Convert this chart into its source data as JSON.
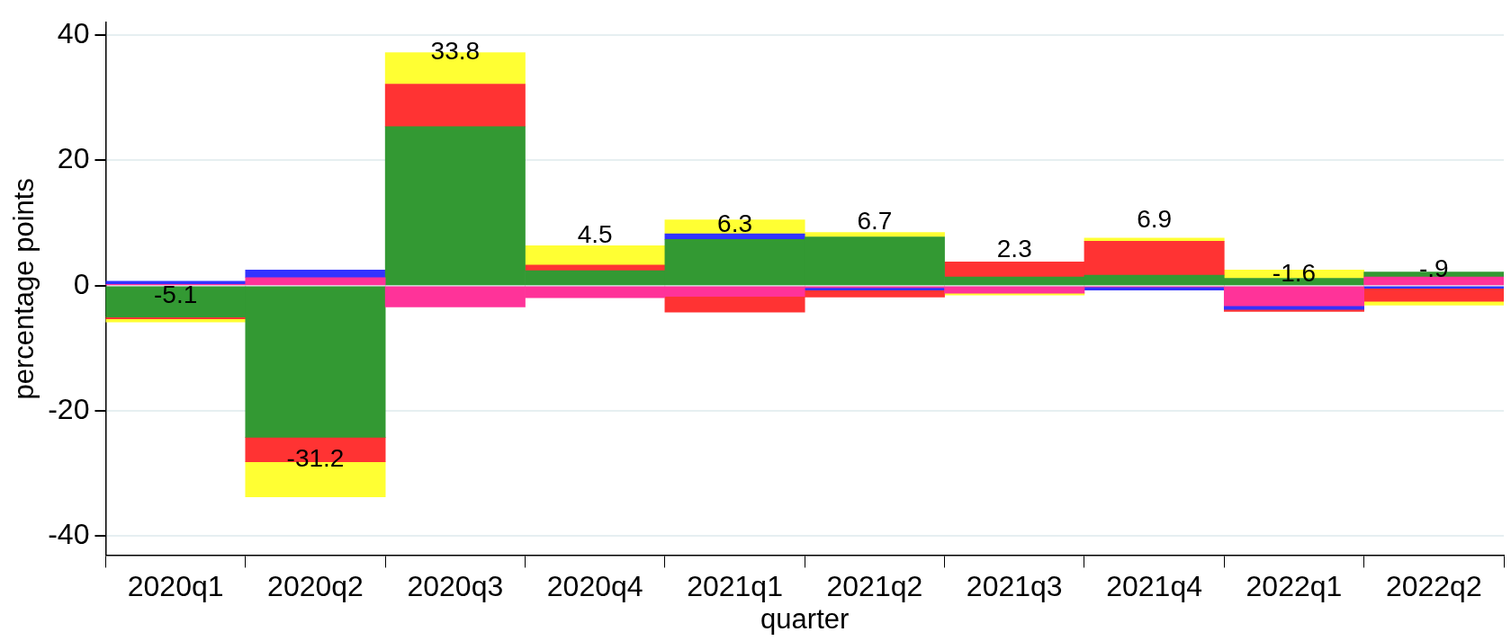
{
  "chart_data": {
    "type": "bar",
    "stacked": true,
    "xlabel": "quarter",
    "ylabel": "percentage points",
    "categories": [
      "2020q1",
      "2020q2",
      "2020q3",
      "2020q4",
      "2021q1",
      "2021q2",
      "2021q3",
      "2021q4",
      "2022q1",
      "2022q2"
    ],
    "series": [
      {
        "color": "#ff3399",
        "values": [
          0.2,
          1.3,
          -3.4,
          -1.9,
          -1.7,
          -0.3,
          -1.2,
          -0.2,
          -3.2,
          1.4
        ]
      },
      {
        "color": "#339933",
        "values": [
          -5.0,
          -24.2,
          25.4,
          2.4,
          7.4,
          7.8,
          1.4,
          1.7,
          1.2,
          0.8
        ]
      },
      {
        "color": "#3333ff",
        "values": [
          0.5,
          1.2,
          null,
          null,
          0.9,
          -0.4,
          null,
          -0.5,
          -0.6,
          -0.4
        ]
      },
      {
        "color": "#ff3333",
        "values": [
          -0.3,
          -3.9,
          6.8,
          0.9,
          -2.5,
          -1.1,
          2.4,
          5.4,
          -0.3,
          -2.1
        ]
      },
      {
        "color": "#ffff33",
        "values": [
          -0.5,
          -5.6,
          5.0,
          3.1,
          2.2,
          0.7,
          -0.3,
          0.5,
          1.3,
          -0.6
        ]
      }
    ],
    "totals": [
      "-5.1",
      "-31.2",
      "33.8",
      "4.5",
      "6.3",
      "6.7",
      "2.3",
      "6.9",
      "-1.6",
      "-.9"
    ],
    "ylim": [
      -43,
      42
    ],
    "yticks": [
      -40,
      -20,
      0,
      20,
      40
    ],
    "grid": "y",
    "legend": false
  }
}
